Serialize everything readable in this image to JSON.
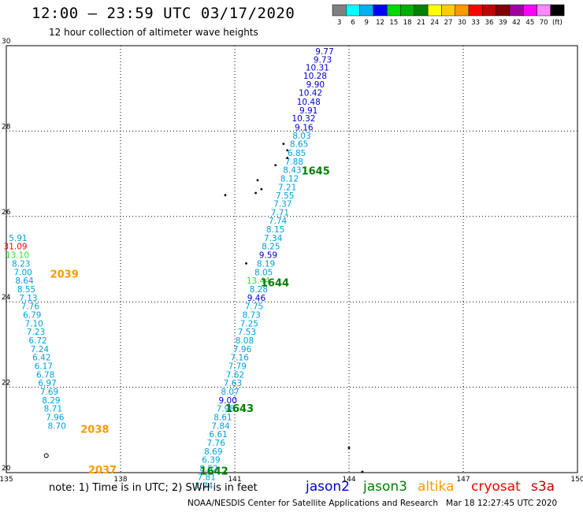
{
  "header": {
    "title": "12:00 – 23:59 UTC 03/17/2020",
    "subtitle": "12 hour collection of altimeter wave heights"
  },
  "colorbar": {
    "colors": [
      "#808080",
      "#00ffff",
      "#00b0f0",
      "#0000ff",
      "#00d800",
      "#00b000",
      "#008000",
      "#ffff00",
      "#ffcc00",
      "#ff9900",
      "#ff0000",
      "#c00000",
      "#800000",
      "#a000a0",
      "#ff00ff",
      "#ff88ff",
      "#000000"
    ],
    "labels": [
      "3",
      "6",
      "9",
      "12",
      "15",
      "18",
      "21",
      "24",
      "27",
      "30",
      "33",
      "36",
      "39",
      "42",
      "45",
      "70",
      "(ft)"
    ]
  },
  "chart_data": {
    "type": "scatter",
    "xlim": [
      135,
      150
    ],
    "ylim": [
      20,
      30
    ],
    "x_ticks": [
      "135",
      "138",
      "141",
      "144",
      "147",
      "150"
    ],
    "y_ticks": [
      "20",
      "22",
      "24",
      "26",
      "28",
      "30"
    ],
    "grid": true,
    "labels": [
      {
        "x": 143.6,
        "y": 29.87,
        "text": "9.77",
        "color": "#0000cc"
      },
      {
        "x": 143.55,
        "y": 29.68,
        "text": "9.73",
        "color": "#0000cc"
      },
      {
        "x": 143.48,
        "y": 29.49,
        "text": "10.31",
        "color": "#0000cc"
      },
      {
        "x": 143.42,
        "y": 29.3,
        "text": "10.28",
        "color": "#0000cc"
      },
      {
        "x": 143.36,
        "y": 29.1,
        "text": "9.90",
        "color": "#0000cc"
      },
      {
        "x": 143.3,
        "y": 28.9,
        "text": "10.42",
        "color": "#0000cc"
      },
      {
        "x": 143.25,
        "y": 28.69,
        "text": "10.48",
        "color": "#0000cc"
      },
      {
        "x": 143.18,
        "y": 28.49,
        "text": "9.91",
        "color": "#0000cc"
      },
      {
        "x": 143.12,
        "y": 28.3,
        "text": "10.32",
        "color": "#0000cc"
      },
      {
        "x": 143.06,
        "y": 28.09,
        "text": "9.16",
        "color": "#0000cc"
      },
      {
        "x": 143.0,
        "y": 27.9,
        "text": "8.03",
        "color": "#00a0e0"
      },
      {
        "x": 142.93,
        "y": 27.7,
        "text": "8.65",
        "color": "#00a0e0"
      },
      {
        "x": 142.87,
        "y": 27.49,
        "text": "6.85",
        "color": "#00a0e0"
      },
      {
        "x": 142.8,
        "y": 27.29,
        "text": "7.88",
        "color": "#00a0e0"
      },
      {
        "x": 142.75,
        "y": 27.09,
        "text": "8.43",
        "color": "#00a0e0"
      },
      {
        "x": 142.68,
        "y": 26.89,
        "text": "8.12",
        "color": "#00a0e0"
      },
      {
        "x": 142.62,
        "y": 26.69,
        "text": "7.21",
        "color": "#00a0e0"
      },
      {
        "x": 142.56,
        "y": 26.49,
        "text": "7.55",
        "color": "#00a0e0"
      },
      {
        "x": 142.5,
        "y": 26.3,
        "text": "7.37",
        "color": "#00a0e0"
      },
      {
        "x": 142.43,
        "y": 26.1,
        "text": "7.71",
        "color": "#00a0e0"
      },
      {
        "x": 142.37,
        "y": 25.9,
        "text": "7.74",
        "color": "#00a0e0"
      },
      {
        "x": 142.31,
        "y": 25.7,
        "text": "8.15",
        "color": "#00a0e0"
      },
      {
        "x": 142.25,
        "y": 25.5,
        "text": "7.34",
        "color": "#00a0e0"
      },
      {
        "x": 142.19,
        "y": 25.3,
        "text": "8.25",
        "color": "#00a0e0"
      },
      {
        "x": 142.12,
        "y": 25.1,
        "text": "9.59",
        "color": "#0000cc"
      },
      {
        "x": 142.06,
        "y": 24.9,
        "text": "8.19",
        "color": "#00a0e0"
      },
      {
        "x": 142.0,
        "y": 24.7,
        "text": "8.05",
        "color": "#00a0e0"
      },
      {
        "x": 141.93,
        "y": 24.5,
        "text": "13.44",
        "color": "#33dd33"
      },
      {
        "x": 141.87,
        "y": 24.3,
        "text": "8.28",
        "color": "#00a0e0"
      },
      {
        "x": 141.81,
        "y": 24.1,
        "text": "9.46",
        "color": "#0000cc"
      },
      {
        "x": 141.75,
        "y": 23.9,
        "text": "7.75",
        "color": "#00a0e0"
      },
      {
        "x": 141.68,
        "y": 23.7,
        "text": "8.73",
        "color": "#00a0e0"
      },
      {
        "x": 141.62,
        "y": 23.5,
        "text": "7.25",
        "color": "#00a0e0"
      },
      {
        "x": 141.56,
        "y": 23.3,
        "text": "7.53",
        "color": "#00a0e0"
      },
      {
        "x": 141.5,
        "y": 23.1,
        "text": "8.08",
        "color": "#00a0e0"
      },
      {
        "x": 141.44,
        "y": 22.9,
        "text": "7.96",
        "color": "#00a0e0"
      },
      {
        "x": 141.37,
        "y": 22.7,
        "text": "7.16",
        "color": "#00a0e0"
      },
      {
        "x": 141.31,
        "y": 22.5,
        "text": "7.79",
        "color": "#00a0e0"
      },
      {
        "x": 141.25,
        "y": 22.3,
        "text": "7.62",
        "color": "#00a0e0"
      },
      {
        "x": 141.19,
        "y": 22.1,
        "text": "7.63",
        "color": "#00a0e0"
      },
      {
        "x": 141.12,
        "y": 21.9,
        "text": "8.07",
        "color": "#00a0e0"
      },
      {
        "x": 141.06,
        "y": 21.7,
        "text": "9.00",
        "color": "#0000cc"
      },
      {
        "x": 141.0,
        "y": 21.5,
        "text": "7.98",
        "color": "#00a0e0"
      },
      {
        "x": 140.93,
        "y": 21.3,
        "text": "8.61",
        "color": "#00a0e0"
      },
      {
        "x": 140.87,
        "y": 21.1,
        "text": "7.84",
        "color": "#00a0e0"
      },
      {
        "x": 140.81,
        "y": 20.9,
        "text": "6.61",
        "color": "#00a0e0"
      },
      {
        "x": 140.75,
        "y": 20.7,
        "text": "7.76",
        "color": "#00a0e0"
      },
      {
        "x": 140.68,
        "y": 20.5,
        "text": "8.69",
        "color": "#00a0e0"
      },
      {
        "x": 140.62,
        "y": 20.3,
        "text": "6.39",
        "color": "#00a0e0"
      },
      {
        "x": 140.56,
        "y": 20.1,
        "text": "8.52",
        "color": "#00a0e0"
      },
      {
        "x": 140.5,
        "y": 19.9,
        "text": "7.81",
        "color": "#00a0e0"
      },
      {
        "x": 140.43,
        "y": 19.7,
        "text": "7.74",
        "color": "#00a0e0"
      },
      {
        "x": 135.55,
        "y": 25.5,
        "text": "5.91",
        "color": "#00a0e0"
      },
      {
        "x": 135.55,
        "y": 25.3,
        "text": "31.09",
        "color": "#ff0000"
      },
      {
        "x": 135.6,
        "y": 25.1,
        "text": "13.10",
        "color": "#33dd33"
      },
      {
        "x": 135.63,
        "y": 24.9,
        "text": "8.23",
        "color": "#00a0e0"
      },
      {
        "x": 135.68,
        "y": 24.7,
        "text": "7.00",
        "color": "#00a0e0"
      },
      {
        "x": 135.72,
        "y": 24.5,
        "text": "8.64",
        "color": "#00a0e0"
      },
      {
        "x": 135.77,
        "y": 24.3,
        "text": "8.55",
        "color": "#00a0e0"
      },
      {
        "x": 135.82,
        "y": 24.1,
        "text": "7.13",
        "color": "#00a0e0"
      },
      {
        "x": 135.87,
        "y": 23.9,
        "text": "7.76",
        "color": "#00a0e0"
      },
      {
        "x": 135.92,
        "y": 23.7,
        "text": "6.79",
        "color": "#00a0e0"
      },
      {
        "x": 135.97,
        "y": 23.5,
        "text": "7.10",
        "color": "#00a0e0"
      },
      {
        "x": 136.02,
        "y": 23.3,
        "text": "7.23",
        "color": "#00a0e0"
      },
      {
        "x": 136.07,
        "y": 23.1,
        "text": "6.72",
        "color": "#00a0e0"
      },
      {
        "x": 136.12,
        "y": 22.9,
        "text": "7.24",
        "color": "#00a0e0"
      },
      {
        "x": 136.17,
        "y": 22.7,
        "text": "6.42",
        "color": "#00a0e0"
      },
      {
        "x": 136.22,
        "y": 22.5,
        "text": "6.17",
        "color": "#00a0e0"
      },
      {
        "x": 136.27,
        "y": 22.3,
        "text": "6.78",
        "color": "#00a0e0"
      },
      {
        "x": 136.32,
        "y": 22.1,
        "text": "6.97",
        "color": "#00a0e0"
      },
      {
        "x": 136.37,
        "y": 21.9,
        "text": "7.69",
        "color": "#00a0e0"
      },
      {
        "x": 136.42,
        "y": 21.7,
        "text": "8.29",
        "color": "#00a0e0"
      },
      {
        "x": 136.47,
        "y": 21.5,
        "text": "8.71",
        "color": "#00a0e0"
      },
      {
        "x": 136.52,
        "y": 21.3,
        "text": "7.96",
        "color": "#00a0e0"
      },
      {
        "x": 136.57,
        "y": 21.1,
        "text": "8.70",
        "color": "#00a0e0"
      }
    ],
    "time_labels": [
      {
        "x": 142.75,
        "y": 27.08,
        "text": "1645",
        "color": "#008000"
      },
      {
        "x": 141.68,
        "y": 24.46,
        "text": "1644",
        "color": "#008000"
      },
      {
        "x": 140.75,
        "y": 21.51,
        "text": "1643",
        "color": "#008000"
      },
      {
        "x": 140.08,
        "y": 20.05,
        "text": "1642",
        "color": "#008000"
      },
      {
        "x": 136.15,
        "y": 24.66,
        "text": "2039",
        "color": "#ff9900"
      },
      {
        "x": 136.95,
        "y": 21.02,
        "text": "2038",
        "color": "#ff9900"
      },
      {
        "x": 137.15,
        "y": 20.07,
        "text": "2037",
        "color": "#ff9900"
      }
    ],
    "points": [
      {
        "x": 142.28,
        "y": 27.7,
        "shape": "dot"
      },
      {
        "x": 142.38,
        "y": 27.55,
        "shape": "dot"
      },
      {
        "x": 142.38,
        "y": 27.37,
        "shape": "dot"
      },
      {
        "x": 142.07,
        "y": 27.2,
        "shape": "dot"
      },
      {
        "x": 141.7,
        "y": 26.64,
        "shape": "dot"
      },
      {
        "x": 141.6,
        "y": 26.85,
        "shape": "dot"
      },
      {
        "x": 141.55,
        "y": 26.55,
        "shape": "dot"
      },
      {
        "x": 140.75,
        "y": 26.5,
        "shape": "dot"
      },
      {
        "x": 141.3,
        "y": 24.9,
        "shape": "dot"
      },
      {
        "x": 144.0,
        "y": 20.58,
        "shape": "dot"
      },
      {
        "x": 144.35,
        "y": 20.02,
        "shape": "dot"
      },
      {
        "x": 136.05,
        "y": 20.4,
        "shape": "circle"
      }
    ]
  },
  "footer": {
    "note": "note: 1) Time is in UTC; 2) SWH is in feet",
    "satellites": [
      {
        "name": "jason2",
        "color": "#0000cc"
      },
      {
        "name": "jason3",
        "color": "#008000"
      },
      {
        "name": "altika",
        "color": "#ff9900"
      },
      {
        "name": "cryosat",
        "color": "#ff0000"
      },
      {
        "name": "s3a",
        "color": "#cc0000"
      }
    ],
    "credit": "NOAA/NESDIS Center for Satellite Applications and Research   Mar 18 12:27:45 UTC 2020"
  }
}
